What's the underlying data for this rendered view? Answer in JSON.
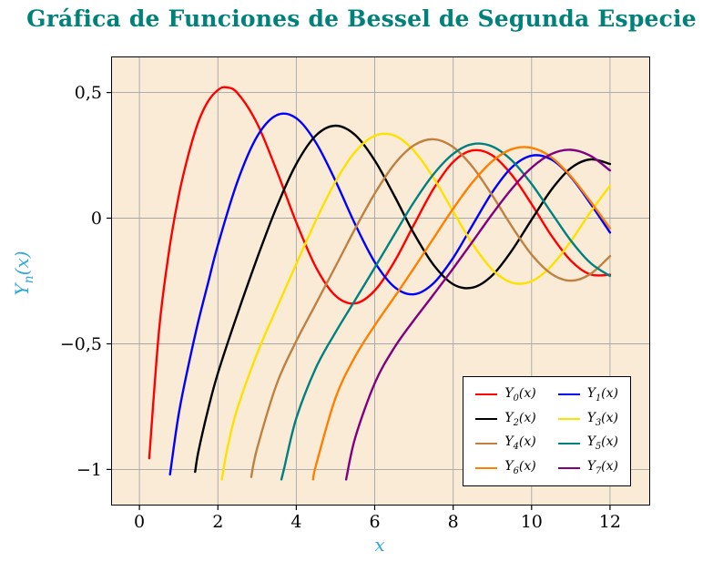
{
  "colors": {
    "title": "#00827B",
    "axis_label": "#2FA8DC",
    "plot_bg": "#FAEBD7",
    "grid": "#A6A6A6",
    "axis": "#000000",
    "tick_label": "#000000",
    "legend_bg": "#FFFFFF",
    "legend_border": "#000000"
  },
  "chart_data": {
    "type": "line",
    "title": "Gráfica de Funciones de Bessel de Segunda Especie",
    "xlabel": "x",
    "ylabel": "Y_n(x)",
    "xlim": [
      -0.7,
      13.0
    ],
    "ylim": [
      -1.14,
      0.64
    ],
    "grid": "major",
    "legend_position": "south east",
    "xticks": {
      "values": [
        0,
        2,
        4,
        6,
        8,
        10,
        12
      ],
      "labels": [
        "0",
        "2",
        "4",
        "6",
        "8",
        "10",
        "12"
      ]
    },
    "yticks": {
      "values": [
        0.5,
        0,
        -0.5,
        -1
      ],
      "labels": [
        "0,5",
        "0",
        "−0,5",
        "−1"
      ]
    },
    "series": [
      {
        "label": "Y_0(x)",
        "color": "#FF0000",
        "x": [
          0.25,
          0.5,
          0.75,
          1,
          1.25,
          1.5,
          1.75,
          2,
          2.2,
          2.5,
          3,
          3.5,
          4,
          4.5,
          5,
          5.5,
          6,
          6.5,
          7,
          7.5,
          8,
          8.5,
          9,
          9.5,
          10,
          10.5,
          11,
          11.5,
          12
        ],
        "y": [
          -0.956,
          -0.445,
          -0.137,
          0.088,
          0.254,
          0.382,
          0.465,
          0.51,
          0.521,
          0.498,
          0.377,
          0.189,
          -0.017,
          -0.195,
          -0.309,
          -0.339,
          -0.288,
          -0.173,
          -0.026,
          0.117,
          0.224,
          0.27,
          0.25,
          0.171,
          0.056,
          -0.068,
          -0.169,
          -0.224,
          -0.225
        ]
      },
      {
        "label": "Y_1(x)",
        "color": "#0000FF",
        "x": [
          0.78,
          1,
          1.25,
          1.5,
          1.75,
          2,
          2.5,
          3,
          3.5,
          4,
          4.5,
          5,
          5.5,
          6,
          6.5,
          7,
          7.5,
          8,
          8.5,
          9,
          9.5,
          10,
          10.5,
          11,
          11.5,
          12
        ],
        "y": [
          -1.02,
          -0.781,
          -0.585,
          -0.412,
          -0.258,
          -0.107,
          0.146,
          0.325,
          0.41,
          0.398,
          0.301,
          0.148,
          -0.024,
          -0.175,
          -0.274,
          -0.303,
          -0.259,
          -0.158,
          -0.026,
          0.104,
          0.203,
          0.249,
          0.234,
          0.164,
          0.058,
          -0.057
        ]
      },
      {
        "label": "Y_2(x)",
        "color": "#000000",
        "x": [
          1.42,
          1.5,
          1.75,
          2,
          2.5,
          3,
          3.5,
          4,
          4.5,
          5,
          5.5,
          6,
          6.5,
          7,
          7.5,
          8,
          8.5,
          9,
          9.5,
          10,
          10.5,
          11,
          11.5,
          12
        ],
        "y": [
          -1.01,
          -0.932,
          -0.762,
          -0.617,
          -0.381,
          -0.16,
          0.045,
          0.216,
          0.329,
          0.368,
          0.331,
          0.23,
          0.089,
          -0.061,
          -0.186,
          -0.263,
          -0.276,
          -0.227,
          -0.128,
          -0.006,
          0.112,
          0.199,
          0.234,
          0.216
        ]
      },
      {
        "label": "Y_3(x)",
        "color": "#FFE100",
        "x": [
          2.1,
          2.25,
          2.5,
          3,
          3.5,
          4,
          4.5,
          5,
          5.5,
          6,
          6.5,
          7,
          7.5,
          8,
          8.5,
          9,
          9.5,
          10,
          10.5,
          11,
          11.5,
          12
        ],
        "y": [
          -1.04,
          -0.91,
          -0.756,
          -0.539,
          -0.358,
          -0.182,
          -0.009,
          0.146,
          0.264,
          0.328,
          0.329,
          0.268,
          0.16,
          0.027,
          -0.104,
          -0.205,
          -0.257,
          -0.251,
          -0.191,
          -0.092,
          0.024,
          0.129
        ]
      },
      {
        "label": "Y_4(x)",
        "color": "#BF8040",
        "x": [
          2.85,
          3,
          3.5,
          4,
          4.5,
          5,
          5.5,
          6,
          6.5,
          7,
          7.5,
          8,
          8.5,
          9,
          9.5,
          10,
          10.5,
          11,
          11.5,
          12
        ],
        "y": [
          -1.03,
          -0.917,
          -0.66,
          -0.489,
          -0.341,
          -0.192,
          -0.042,
          0.098,
          0.215,
          0.29,
          0.314,
          0.283,
          0.203,
          0.09,
          -0.034,
          -0.145,
          -0.221,
          -0.249,
          -0.222,
          -0.151
        ]
      },
      {
        "label": "Y_5(x)",
        "color": "#008080",
        "x": [
          3.62,
          3.7,
          4,
          4.5,
          5,
          5.5,
          6,
          6.5,
          7,
          7.5,
          8,
          8.5,
          9,
          9.5,
          10,
          10.5,
          11,
          11.5,
          12
        ],
        "y": [
          -1.04,
          -0.989,
          -0.796,
          -0.596,
          -0.454,
          -0.326,
          -0.197,
          -0.065,
          0.064,
          0.175,
          0.256,
          0.295,
          0.285,
          0.229,
          0.136,
          0.023,
          -0.089,
          -0.178,
          -0.23
        ]
      },
      {
        "label": "Y_6(x)",
        "color": "#FF8000",
        "x": [
          4.43,
          4.5,
          5,
          5.5,
          6,
          6.5,
          7,
          7.5,
          8,
          8.5,
          9,
          9.5,
          10,
          10.5,
          11,
          11.5,
          12
        ],
        "y": [
          -1.04,
          -0.985,
          -0.715,
          -0.551,
          -0.427,
          -0.314,
          -0.199,
          -0.08,
          0.038,
          0.144,
          0.227,
          0.275,
          0.28,
          0.243,
          0.167,
          0.067,
          -0.04
        ]
      },
      {
        "label": "Y_7(x)",
        "color": "#800080",
        "x": [
          5.27,
          5.5,
          6,
          6.5,
          7,
          7.5,
          8,
          8.5,
          9,
          9.5,
          10,
          10.5,
          11,
          11.5,
          12
        ],
        "y": [
          -1.04,
          -0.875,
          -0.657,
          -0.515,
          -0.406,
          -0.304,
          -0.2,
          -0.092,
          0.017,
          0.118,
          0.201,
          0.255,
          0.272,
          0.248,
          0.19
        ]
      }
    ]
  }
}
